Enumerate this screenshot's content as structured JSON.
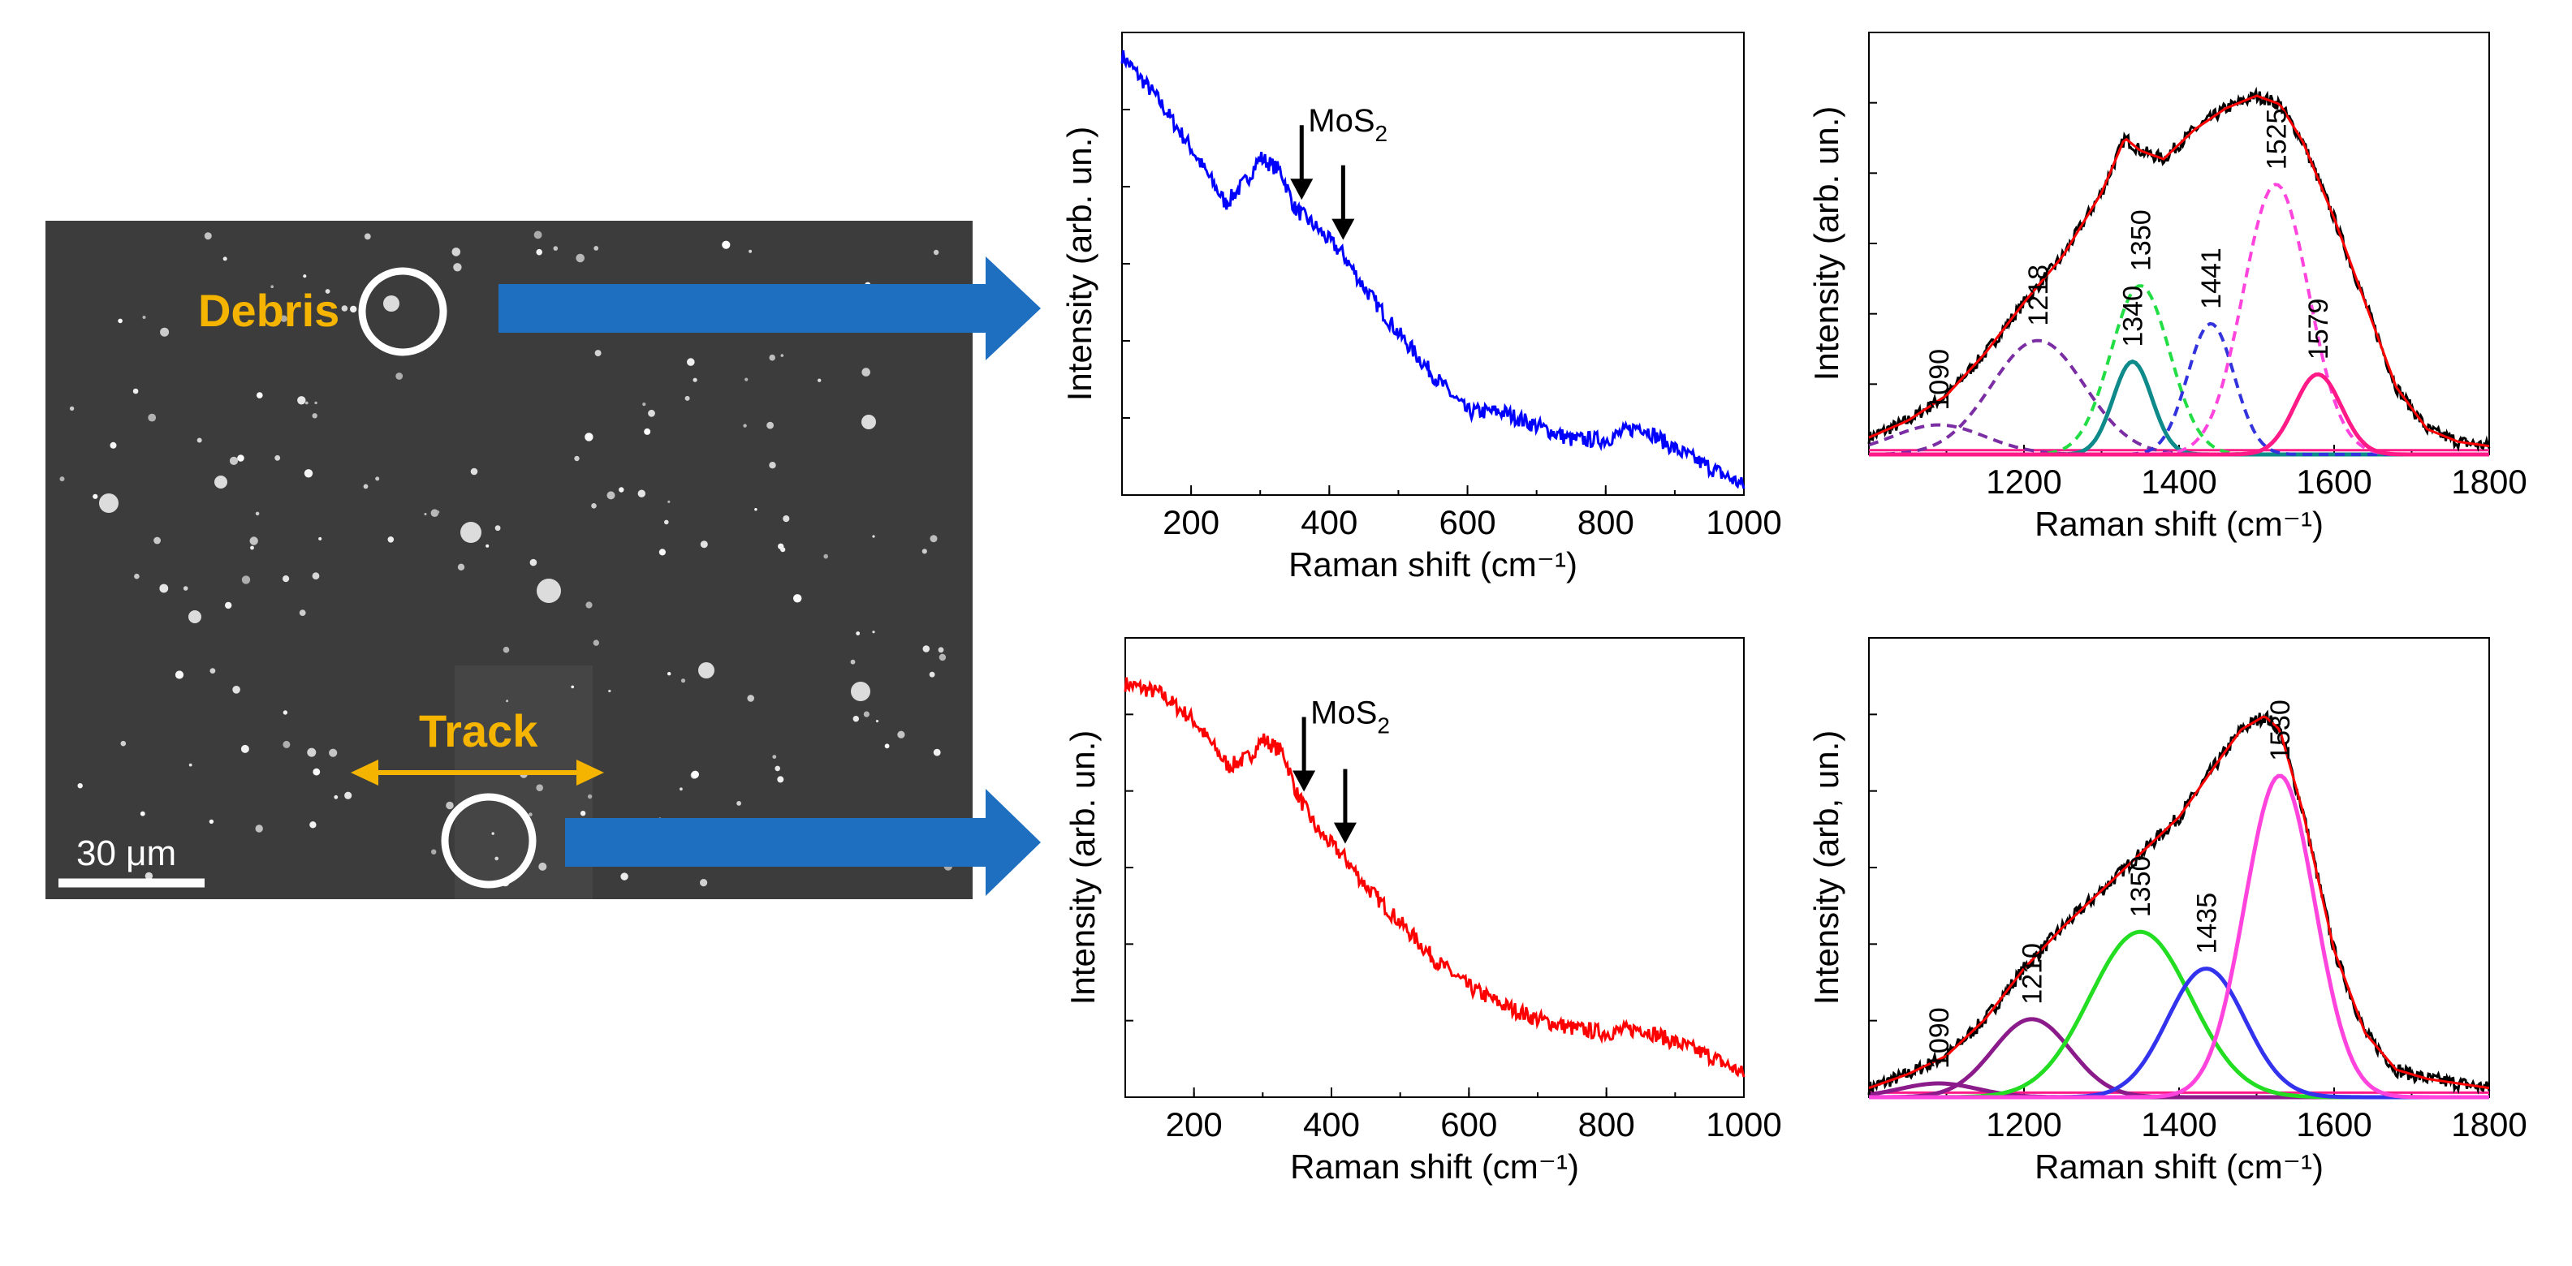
{
  "sem": {
    "debris_label": "Debris",
    "track_label": "Track",
    "scale_label": "30 μm",
    "label_color": "#f5b400",
    "arrow_color": "#1f6fc0"
  },
  "chart_data": [
    {
      "id": "top-left",
      "type": "line",
      "title": "",
      "xlabel": "Raman shift (cm⁻¹)",
      "ylabel": "Intensity (arb. un.)",
      "xlim": [
        100,
        1000
      ],
      "xticks": [
        200,
        400,
        600,
        800,
        1000
      ],
      "ylim": [
        0,
        1
      ],
      "color": "#0000ff",
      "x": [
        100,
        150,
        200,
        250,
        280,
        300,
        330,
        350,
        380,
        420,
        450,
        500,
        550,
        600,
        650,
        700,
        750,
        800,
        850,
        900,
        950,
        1000
      ],
      "y": [
        0.95,
        0.86,
        0.75,
        0.63,
        0.68,
        0.73,
        0.7,
        0.62,
        0.58,
        0.52,
        0.45,
        0.35,
        0.26,
        0.18,
        0.18,
        0.15,
        0.12,
        0.12,
        0.15,
        0.1,
        0.06,
        0.02
      ],
      "annotations": [
        {
          "label": "MoS",
          "sub": "2",
          "x": 360
        },
        {
          "label": "",
          "sub": "",
          "x": 420
        }
      ]
    },
    {
      "id": "top-right",
      "type": "line",
      "title": "",
      "xlabel": "Raman shift (cm⁻¹)",
      "ylabel": "Intensity (arb. un.)",
      "xlim": [
        1000,
        1800
      ],
      "xticks": [
        1200,
        1400,
        1600,
        1800
      ],
      "ylim": [
        0,
        1
      ],
      "envelope": {
        "x": [
          1000,
          1050,
          1100,
          1150,
          1200,
          1250,
          1300,
          1330,
          1350,
          1380,
          1420,
          1460,
          1500,
          1530,
          1560,
          1600,
          1640,
          1680,
          1720,
          1760,
          1800
        ],
        "y": [
          0.04,
          0.08,
          0.14,
          0.24,
          0.36,
          0.47,
          0.62,
          0.75,
          0.72,
          0.7,
          0.77,
          0.82,
          0.85,
          0.83,
          0.74,
          0.56,
          0.36,
          0.16,
          0.06,
          0.03,
          0.02
        ]
      },
      "series": [
        {
          "name": "1090",
          "center": 1090,
          "height": 0.07,
          "width": 60,
          "color": "#7b2ea3",
          "dash": true
        },
        {
          "name": "1218",
          "center": 1218,
          "height": 0.27,
          "width": 60,
          "color": "#7b2ea3",
          "dash": true
        },
        {
          "name": "1350",
          "center": 1350,
          "height": 0.4,
          "width": 38,
          "color": "#22dd44",
          "dash": true
        },
        {
          "name": "1340",
          "center": 1340,
          "height": 0.22,
          "width": 25,
          "color": "#0e8a8a",
          "dash": false
        },
        {
          "name": "1441",
          "center": 1441,
          "height": 0.31,
          "width": 30,
          "color": "#3333dd",
          "dash": true
        },
        {
          "name": "1525",
          "center": 1525,
          "height": 0.64,
          "width": 42,
          "color": "#ff44dd",
          "dash": true
        },
        {
          "name": "1579",
          "center": 1579,
          "height": 0.19,
          "width": 30,
          "color": "#ff1a88",
          "dash": false
        }
      ]
    },
    {
      "id": "bottom-left",
      "type": "line",
      "title": "",
      "xlabel": "Raman shift (cm⁻¹)",
      "ylabel": "Intensity (arb. un.)",
      "xlim": [
        100,
        1000
      ],
      "xticks": [
        200,
        400,
        600,
        800,
        1000
      ],
      "ylim": [
        0,
        1
      ],
      "color": "#ff0000",
      "x": [
        100,
        150,
        200,
        250,
        280,
        300,
        330,
        350,
        380,
        420,
        450,
        500,
        550,
        600,
        650,
        700,
        750,
        800,
        850,
        900,
        950,
        1000
      ],
      "y": [
        0.9,
        0.88,
        0.82,
        0.72,
        0.74,
        0.78,
        0.75,
        0.66,
        0.58,
        0.52,
        0.46,
        0.38,
        0.3,
        0.24,
        0.2,
        0.17,
        0.15,
        0.14,
        0.15,
        0.12,
        0.09,
        0.05
      ],
      "annotations": [
        {
          "label": "MoS",
          "sub": "2",
          "x": 360
        },
        {
          "label": "",
          "sub": "",
          "x": 420
        }
      ]
    },
    {
      "id": "bottom-right",
      "type": "line",
      "title": "",
      "xlabel": "Raman shift (cm⁻¹)",
      "ylabel": "Intensity (arb, un.)",
      "xlim": [
        1000,
        1800
      ],
      "xticks": [
        1200,
        1400,
        1600,
        1800
      ],
      "ylim": [
        0,
        1
      ],
      "envelope": {
        "x": [
          1000,
          1050,
          1100,
          1150,
          1200,
          1250,
          1300,
          1350,
          1400,
          1450,
          1480,
          1510,
          1530,
          1560,
          1600,
          1640,
          1680,
          1720,
          1760,
          1800
        ],
        "y": [
          0.02,
          0.05,
          0.09,
          0.17,
          0.28,
          0.37,
          0.45,
          0.53,
          0.61,
          0.73,
          0.8,
          0.83,
          0.8,
          0.62,
          0.32,
          0.14,
          0.06,
          0.04,
          0.03,
          0.02
        ]
      },
      "series": [
        {
          "name": "1090",
          "center": 1090,
          "height": 0.03,
          "width": 50,
          "color": "#8b1a8b",
          "dash": false
        },
        {
          "name": "1210",
          "center": 1210,
          "height": 0.17,
          "width": 50,
          "color": "#8b1a8b",
          "dash": false
        },
        {
          "name": "1350",
          "center": 1350,
          "height": 0.36,
          "width": 65,
          "color": "#22dd22",
          "dash": false
        },
        {
          "name": "1435",
          "center": 1435,
          "height": 0.28,
          "width": 50,
          "color": "#3333ee",
          "dash": false
        },
        {
          "name": "1530",
          "center": 1530,
          "height": 0.7,
          "width": 45,
          "color": "#ff44dd",
          "dash": false
        }
      ]
    }
  ]
}
